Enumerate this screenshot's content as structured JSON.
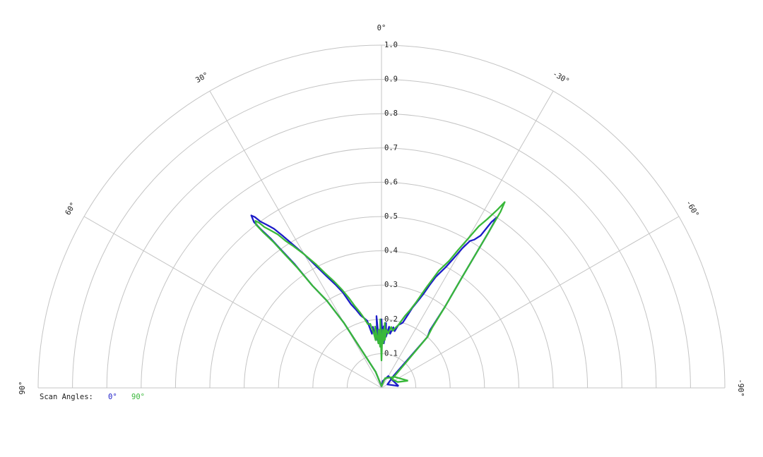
{
  "chart_data": {
    "type": "polar-half",
    "angle_range_deg": [
      -90,
      90
    ],
    "angle_ticks": [
      {
        "deg": 0,
        "label": "0°"
      },
      {
        "deg": 30,
        "label": "30°"
      },
      {
        "deg": 60,
        "label": "60°"
      },
      {
        "deg": 90,
        "label": "90°"
      },
      {
        "deg": -30,
        "label": "-30°"
      },
      {
        "deg": -60,
        "label": "-60°"
      },
      {
        "deg": -90,
        "label": "-90°"
      }
    ],
    "radial_range": [
      0,
      1.0
    ],
    "radial_ticks": [
      "0.1",
      "0.2",
      "0.3",
      "0.4",
      "0.5",
      "0.6",
      "0.7",
      "0.8",
      "0.9",
      "1.0"
    ],
    "grid": true,
    "legend": {
      "title": "Scan Angles:",
      "position": "bottom-left"
    },
    "series": [
      {
        "name": "0°",
        "color": "#1c1cc8",
        "points": [
          [
            -84,
            0.05
          ],
          [
            -80,
            0.04
          ],
          [
            -60,
            0.02
          ],
          [
            -45,
            0.05
          ],
          [
            -42,
            0.2
          ],
          [
            -40,
            0.22
          ],
          [
            -38,
            0.3
          ],
          [
            -36,
            0.4
          ],
          [
            -34.5,
            0.55
          ],
          [
            -34,
            0.6
          ],
          [
            -33.5,
            0.58
          ],
          [
            -33,
            0.53
          ],
          [
            -32,
            0.51
          ],
          [
            -31,
            0.5
          ],
          [
            -30,
            0.47
          ],
          [
            -29,
            0.43
          ],
          [
            -28,
            0.4
          ],
          [
            -26,
            0.36
          ],
          [
            -25,
            0.33
          ],
          [
            -24,
            0.3
          ],
          [
            -23,
            0.28
          ],
          [
            -21,
            0.25
          ],
          [
            -20,
            0.23
          ],
          [
            -18,
            0.2
          ],
          [
            -15,
            0.19
          ],
          [
            -13,
            0.17
          ],
          [
            -11,
            0.18
          ],
          [
            -9,
            0.16
          ],
          [
            -7,
            0.18
          ],
          [
            -5,
            0.15
          ],
          [
            -4,
            0.19
          ],
          [
            -3,
            0.13
          ],
          [
            -2,
            0.18
          ],
          [
            -1,
            0.15
          ],
          [
            0,
            0.2
          ],
          [
            1,
            0.13
          ],
          [
            2,
            0.17
          ],
          [
            3,
            0.13
          ],
          [
            4,
            0.21
          ],
          [
            5,
            0.14
          ],
          [
            6,
            0.17
          ],
          [
            7,
            0.15
          ],
          [
            8,
            0.18
          ],
          [
            10,
            0.16
          ],
          [
            12,
            0.2
          ],
          [
            14,
            0.21
          ],
          [
            16,
            0.22
          ],
          [
            18,
            0.24
          ],
          [
            20,
            0.26
          ],
          [
            22,
            0.3
          ],
          [
            24,
            0.33
          ],
          [
            26,
            0.36
          ],
          [
            28,
            0.4
          ],
          [
            30,
            0.45
          ],
          [
            32,
            0.5
          ],
          [
            33,
            0.53
          ],
          [
            34,
            0.56
          ],
          [
            35,
            0.58
          ],
          [
            36,
            0.6
          ],
          [
            36.5,
            0.62
          ],
          [
            37,
            0.63
          ],
          [
            37.5,
            0.61
          ],
          [
            37.2,
            0.58
          ],
          [
            36.5,
            0.54
          ],
          [
            36,
            0.5
          ],
          [
            35,
            0.44
          ],
          [
            34,
            0.36
          ],
          [
            32,
            0.3
          ],
          [
            30,
            0.22
          ],
          [
            20,
            0.05
          ],
          [
            0,
            0.005
          ],
          [
            -10,
            0.02
          ],
          [
            -30,
            0.04
          ],
          [
            -60,
            0.04
          ],
          [
            -84,
            0.05
          ]
        ]
      },
      {
        "name": "90°",
        "color": "#39b83a",
        "points": [
          [
            -75,
            0.08
          ],
          [
            -70,
            0.05
          ],
          [
            -50,
            0.04
          ],
          [
            -42,
            0.2
          ],
          [
            -40,
            0.23
          ],
          [
            -38,
            0.3
          ],
          [
            -36,
            0.4
          ],
          [
            -34.5,
            0.55
          ],
          [
            -34,
            0.62
          ],
          [
            -33.5,
            0.65
          ],
          [
            -33,
            0.62
          ],
          [
            -32,
            0.58
          ],
          [
            -31,
            0.55
          ],
          [
            -30,
            0.5
          ],
          [
            -29,
            0.46
          ],
          [
            -28,
            0.42
          ],
          [
            -26,
            0.38
          ],
          [
            -24,
            0.32
          ],
          [
            -22,
            0.27
          ],
          [
            -20,
            0.24
          ],
          [
            -18,
            0.22
          ],
          [
            -15,
            0.19
          ],
          [
            -13,
            0.18
          ],
          [
            -11,
            0.17
          ],
          [
            -9,
            0.18
          ],
          [
            -7,
            0.16
          ],
          [
            -5,
            0.17
          ],
          [
            -4,
            0.14
          ],
          [
            -3,
            0.19
          ],
          [
            -2,
            0.13
          ],
          [
            -1,
            0.17
          ],
          [
            0,
            0.08
          ],
          [
            1,
            0.2
          ],
          [
            2,
            0.12
          ],
          [
            3,
            0.17
          ],
          [
            4,
            0.13
          ],
          [
            5,
            0.15
          ],
          [
            6,
            0.18
          ],
          [
            7,
            0.14
          ],
          [
            8,
            0.16
          ],
          [
            10,
            0.19
          ],
          [
            12,
            0.19
          ],
          [
            14,
            0.21
          ],
          [
            16,
            0.23
          ],
          [
            18,
            0.25
          ],
          [
            20,
            0.28
          ],
          [
            22,
            0.31
          ],
          [
            24,
            0.34
          ],
          [
            26,
            0.37
          ],
          [
            28,
            0.41
          ],
          [
            30,
            0.45
          ],
          [
            32,
            0.49
          ],
          [
            33,
            0.51
          ],
          [
            34,
            0.54
          ],
          [
            35,
            0.56
          ],
          [
            36,
            0.58
          ],
          [
            36.5,
            0.6
          ],
          [
            37,
            0.61
          ],
          [
            37.5,
            0.6
          ],
          [
            37.2,
            0.57
          ],
          [
            36.5,
            0.53
          ],
          [
            36,
            0.49
          ],
          [
            35,
            0.43
          ],
          [
            34,
            0.36
          ],
          [
            32,
            0.3
          ],
          [
            30,
            0.22
          ],
          [
            20,
            0.05
          ],
          [
            0,
            0.005
          ],
          [
            -20,
            0.03
          ],
          [
            -50,
            0.05
          ],
          [
            -75,
            0.08
          ]
        ]
      }
    ]
  }
}
